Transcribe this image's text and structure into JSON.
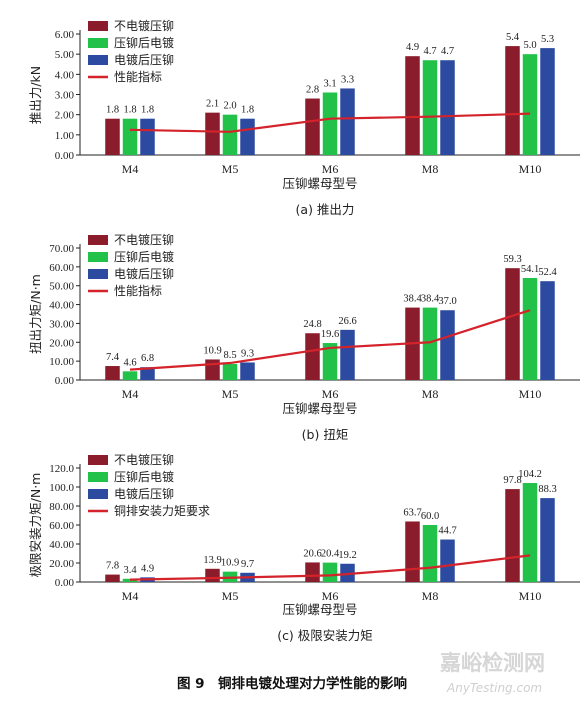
{
  "colors": {
    "series": [
      "#8b1c2b",
      "#22c24a",
      "#2c4aa0"
    ],
    "line": "#d4232b",
    "axis": "#222222"
  },
  "chart_data": [
    {
      "type": "bar",
      "subcaption": "(a) 推出力",
      "xlabel": "压铆螺母型号",
      "ylabel": "推出力/kN",
      "categories": [
        "M4",
        "M5",
        "M6",
        "M8",
        "M10"
      ],
      "ylim": [
        0,
        6
      ],
      "yticks": [
        "0.00",
        "1.00",
        "2.00",
        "3.00",
        "4.00",
        "5.00",
        "6.00"
      ],
      "series": [
        {
          "name": "不电镀压铆",
          "values": [
            1.8,
            2.1,
            2.8,
            4.9,
            5.4
          ],
          "labels": [
            "1.8",
            "2.1",
            "2.8",
            "4.9",
            "5.4"
          ]
        },
        {
          "name": "压铆后电镀",
          "values": [
            1.8,
            2.0,
            3.1,
            4.7,
            5.0
          ],
          "labels": [
            "1.8",
            "2.0",
            "3.1",
            "4.7",
            "5.0"
          ]
        },
        {
          "name": "电镀后压铆",
          "values": [
            1.8,
            1.8,
            3.3,
            4.7,
            5.3
          ],
          "labels": [
            "1.8",
            "1.8",
            "3.3",
            "4.7",
            "5.3"
          ]
        }
      ],
      "line": {
        "name": "性能指标",
        "values": [
          1.25,
          1.15,
          1.8,
          1.9,
          2.05
        ]
      },
      "grid": false,
      "legend": "top-left"
    },
    {
      "type": "bar",
      "subcaption": "(b) 扭矩",
      "xlabel": "压铆螺母型号",
      "ylabel": "扭出力矩/N·m",
      "categories": [
        "M4",
        "M5",
        "M6",
        "M8",
        "M10"
      ],
      "ylim": [
        0,
        70
      ],
      "yticks": [
        "0.00",
        "10.00",
        "20.00",
        "30.00",
        "40.00",
        "50.00",
        "60.00",
        "70.00"
      ],
      "series": [
        {
          "name": "不电镀压铆",
          "values": [
            7.4,
            10.9,
            24.8,
            38.4,
            59.3
          ],
          "labels": [
            "7.4",
            "10.9",
            "24.8",
            "38.4",
            "59.3"
          ]
        },
        {
          "name": "压铆后电镀",
          "values": [
            4.6,
            8.5,
            19.6,
            38.4,
            54.1
          ],
          "labels": [
            "4.6",
            "8.5",
            "19.6",
            "38.4",
            "54.1"
          ]
        },
        {
          "name": "电镀后压铆",
          "values": [
            6.8,
            9.3,
            26.6,
            37.0,
            52.4
          ],
          "labels": [
            "6.8",
            "9.3",
            "26.6",
            "37.0",
            "52.4"
          ]
        }
      ],
      "line": {
        "name": "性能指标",
        "values": [
          5.5,
          9.0,
          17.0,
          20.0,
          37.0
        ]
      },
      "grid": false,
      "legend": "top-left"
    },
    {
      "type": "bar",
      "subcaption": "(c) 极限安装力矩",
      "xlabel": "压铆螺母型号",
      "ylabel": "极限安装力矩/N·m",
      "categories": [
        "M4",
        "M5",
        "M6",
        "M8",
        "M10"
      ],
      "ylim": [
        0,
        120
      ],
      "yticks": [
        "0.00",
        "20.00",
        "40.00",
        "60.00",
        "80.00",
        "100.0",
        "120.0"
      ],
      "series": [
        {
          "name": "不电镀压铆",
          "values": [
            7.8,
            13.9,
            20.6,
            63.7,
            97.8
          ],
          "labels": [
            "7.8",
            "13.9",
            "20.6",
            "63.7",
            "97.8"
          ]
        },
        {
          "name": "压铆后电镀",
          "values": [
            3.4,
            10.9,
            20.4,
            60.0,
            104.2
          ],
          "labels": [
            "3.4",
            "10.9",
            "20.4",
            "60.0",
            "104.2"
          ]
        },
        {
          "name": "电镀后压铆",
          "values": [
            4.9,
            9.7,
            19.2,
            44.7,
            88.3
          ],
          "labels": [
            "4.9",
            "9.7",
            "19.2",
            "44.7",
            "88.3"
          ]
        }
      ],
      "line": {
        "name": "铜排安装力矩要求",
        "values": [
          2.5,
          4.5,
          7.0,
          15.0,
          28.0
        ]
      },
      "grid": false,
      "legend": "top-left"
    }
  ],
  "figure_caption": "图 9　铜排电镀处理对力学性能的影响",
  "watermark": {
    "line1": "嘉峪检测网",
    "line2": "AnyTesting.com"
  }
}
